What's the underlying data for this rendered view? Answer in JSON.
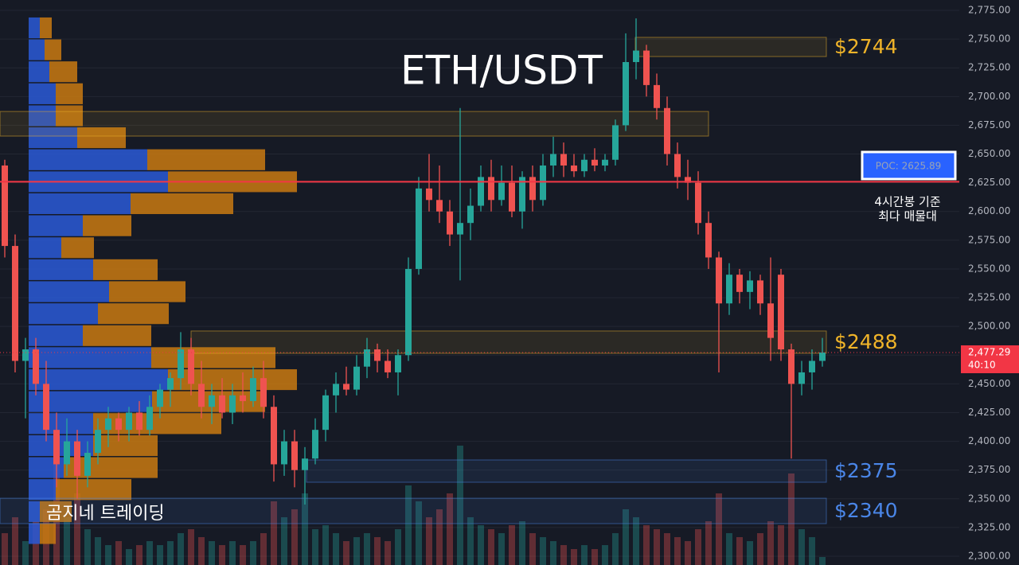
{
  "chart_data": {
    "type": "candlestick",
    "title": "ETH/USDT",
    "watermark": "곰지네 트레이딩",
    "ylim": [
      2292.4,
      2784.0
    ],
    "yticks": [
      {
        "value": 2300,
        "label": "2,300.00"
      },
      {
        "value": 2325,
        "label": "2,325.00"
      },
      {
        "value": 2350,
        "label": "2,350.00"
      },
      {
        "value": 2375,
        "label": "2,375.00"
      },
      {
        "value": 2400,
        "label": "2,400.00"
      },
      {
        "value": 2425,
        "label": "2,425.00"
      },
      {
        "value": 2450,
        "label": "2,450.00"
      },
      {
        "value": 2475,
        "label": "2,475.00"
      },
      {
        "value": 2500,
        "label": "2,500.00"
      },
      {
        "value": 2525,
        "label": "2,525.00"
      },
      {
        "value": 2550,
        "label": "2,550.00"
      },
      {
        "value": 2575,
        "label": "2,575.00"
      },
      {
        "value": 2600,
        "label": "2,600.00"
      },
      {
        "value": 2625,
        "label": "2,625.00"
      },
      {
        "value": 2650,
        "label": "2,650.00"
      },
      {
        "value": 2675,
        "label": "2,675.00"
      },
      {
        "value": 2700,
        "label": "2,700.00"
      },
      {
        "value": 2725,
        "label": "2,725.00"
      },
      {
        "value": 2750,
        "label": "2,750.00"
      },
      {
        "value": 2775,
        "label": "2,775.00"
      }
    ],
    "grid": true,
    "up_color": "#26a69a",
    "down_color": "#ef5350",
    "open": [
      2640,
      2570,
      2470,
      2480,
      2450,
      2410,
      2380,
      2400,
      2370,
      2390,
      2410,
      2420,
      2410,
      2425,
      2410,
      2430,
      2445,
      2455,
      2480,
      2450,
      2430,
      2440,
      2425,
      2440,
      2435,
      2455,
      2430,
      2380,
      2400,
      2375,
      2385,
      2410,
      2440,
      2450,
      2445,
      2465,
      2480,
      2470,
      2460,
      2475,
      2550,
      2620,
      2610,
      2600,
      2580,
      2590,
      2605,
      2630,
      2610,
      2625,
      2600,
      2630,
      2610,
      2640,
      2650,
      2640,
      2635,
      2645,
      2640,
      2645,
      2675,
      2730,
      2740,
      2710,
      2690,
      2650,
      2630,
      2625,
      2590,
      2560,
      2520,
      2545,
      2530,
      2540,
      2520,
      2545,
      2480,
      2450,
      2460,
      2470
    ],
    "high": [
      2645,
      2580,
      2490,
      2490,
      2470,
      2425,
      2420,
      2410,
      2400,
      2420,
      2430,
      2425,
      2430,
      2435,
      2440,
      2450,
      2460,
      2495,
      2490,
      2470,
      2450,
      2455,
      2450,
      2460,
      2465,
      2470,
      2440,
      2410,
      2410,
      2395,
      2420,
      2445,
      2460,
      2465,
      2475,
      2490,
      2485,
      2480,
      2480,
      2560,
      2630,
      2650,
      2640,
      2610,
      2690,
      2620,
      2640,
      2645,
      2640,
      2640,
      2635,
      2640,
      2650,
      2665,
      2660,
      2650,
      2650,
      2655,
      2650,
      2680,
      2755,
      2768,
      2745,
      2720,
      2700,
      2660,
      2645,
      2635,
      2600,
      2565,
      2555,
      2550,
      2548,
      2545,
      2560,
      2550,
      2485,
      2470,
      2480,
      2490
    ],
    "low": [
      2560,
      2460,
      2420,
      2440,
      2400,
      2360,
      2370,
      2350,
      2360,
      2380,
      2395,
      2400,
      2400,
      2405,
      2405,
      2420,
      2430,
      2445,
      2440,
      2420,
      2415,
      2420,
      2415,
      2425,
      2430,
      2420,
      2365,
      2370,
      2360,
      2345,
      2380,
      2400,
      2425,
      2440,
      2440,
      2455,
      2460,
      2455,
      2440,
      2470,
      2545,
      2600,
      2590,
      2570,
      2540,
      2575,
      2600,
      2600,
      2605,
      2595,
      2585,
      2600,
      2605,
      2630,
      2630,
      2630,
      2630,
      2635,
      2635,
      2640,
      2670,
      2715,
      2700,
      2680,
      2640,
      2620,
      2610,
      2580,
      2550,
      2460,
      2510,
      2520,
      2515,
      2510,
      2470,
      2470,
      2385,
      2440,
      2445,
      2465
    ],
    "close": [
      2570,
      2470,
      2480,
      2450,
      2410,
      2380,
      2400,
      2370,
      2390,
      2410,
      2420,
      2410,
      2425,
      2410,
      2430,
      2445,
      2455,
      2480,
      2450,
      2430,
      2440,
      2425,
      2440,
      2435,
      2455,
      2430,
      2380,
      2400,
      2375,
      2385,
      2410,
      2440,
      2450,
      2445,
      2465,
      2480,
      2470,
      2460,
      2475,
      2550,
      2620,
      2610,
      2600,
      2580,
      2590,
      2605,
      2630,
      2610,
      2625,
      2600,
      2630,
      2610,
      2640,
      2650,
      2640,
      2635,
      2645,
      2640,
      2645,
      2675,
      2730,
      2740,
      2710,
      2690,
      2650,
      2630,
      2625,
      2590,
      2560,
      2520,
      2545,
      2530,
      2540,
      2520,
      2490,
      2480,
      2450,
      2460,
      2470,
      2477.29
    ],
    "volume": [
      40,
      60,
      30,
      55,
      70,
      130,
      60,
      90,
      45,
      35,
      25,
      30,
      20,
      25,
      30,
      25,
      30,
      40,
      45,
      35,
      30,
      25,
      30,
      25,
      30,
      40,
      80,
      60,
      70,
      90,
      45,
      50,
      40,
      30,
      35,
      40,
      35,
      30,
      45,
      100,
      80,
      60,
      70,
      90,
      150,
      60,
      50,
      45,
      40,
      50,
      55,
      40,
      35,
      30,
      25,
      20,
      25,
      20,
      25,
      40,
      70,
      60,
      50,
      45,
      40,
      35,
      30,
      45,
      55,
      90,
      40,
      35,
      30,
      40,
      55,
      50,
      115,
      45,
      35,
      10
    ],
    "profile": {
      "bins": [
        2309.7,
        2328.8,
        2347.9,
        2367.1,
        2386.2,
        2405.3,
        2424.5,
        2443.6,
        2462.7,
        2481.9,
        2501.0,
        2520.1,
        2539.3,
        2558.4,
        2577.5,
        2596.7,
        2615.8,
        2634.9,
        2654.1,
        2673.2,
        2692.3,
        2711.5,
        2730.6,
        2749.7,
        2768.8
      ],
      "buy": [
        14,
        14,
        34,
        44,
        81,
        81,
        155,
        175,
        154,
        68,
        87,
        101,
        81,
        41,
        68,
        128,
        175,
        149,
        61,
        34,
        34,
        26,
        20,
        14
      ],
      "sell": [
        20,
        40,
        95,
        118,
        81,
        161,
        142,
        162,
        156,
        86,
        89,
        96,
        81,
        41,
        61,
        129,
        162,
        148,
        61,
        34,
        34,
        35,
        21,
        15
      ],
      "buy_color": "#2a5bd7",
      "sell_color": "#c97a12"
    },
    "zones": [
      {
        "low": 2734.8,
        "high": 2751.5,
        "label": "$2744",
        "color": "#f0b429"
      },
      {
        "low": 2665.6,
        "high": 2687.0,
        "color": "#f0b429"
      },
      {
        "low": 2476.6,
        "high": 2496.0,
        "label": "$2488",
        "color": "#f0b429"
      },
      {
        "low": 2364.4,
        "high": 2383.8,
        "label": "$2375",
        "color": "#4a86e8"
      },
      {
        "low": 2328.4,
        "high": 2350.5,
        "label": "$2340",
        "color": "#4a86e8"
      }
    ],
    "poc": {
      "value": 2625.89,
      "label": "POC: 2625.89",
      "note": [
        "4시간봉 기준",
        "최다 매물대"
      ],
      "color": "#f23645"
    },
    "last_price": {
      "value": 2477.29,
      "label": "2,477.29",
      "countdown": "40:10",
      "color": "#f23645"
    }
  }
}
